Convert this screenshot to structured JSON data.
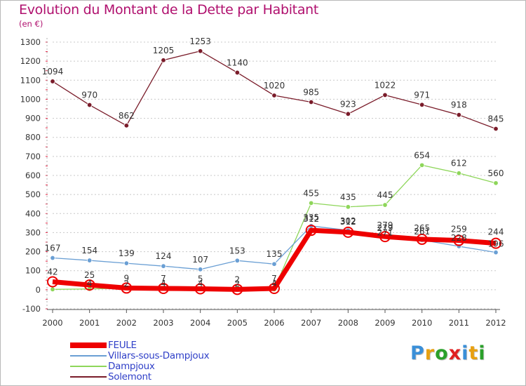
{
  "chart_data": {
    "type": "line",
    "title": "Evolution du Montant de la Dette par Habitant",
    "subtitle": "(en €)",
    "x": [
      "2000",
      "2001",
      "2002",
      "2003",
      "2004",
      "2005",
      "2006",
      "2007",
      "2008",
      "2009",
      "2010",
      "2011",
      "2012"
    ],
    "yticks": [
      -100,
      0,
      100,
      200,
      300,
      400,
      500,
      600,
      700,
      800,
      900,
      1000,
      1100,
      1200,
      1300
    ],
    "ylim": [
      -100,
      1300
    ],
    "grid": "horizontal dashed",
    "legend_position": "bottom-left",
    "series": [
      {
        "name": "Solemont",
        "color": "#7a1c2a",
        "values": [
          1094,
          970,
          862,
          1205,
          1253,
          1140,
          1020,
          985,
          923,
          1022,
          971,
          918,
          845
        ],
        "labels": [
          "1094",
          "970",
          "862",
          "1205",
          "1253",
          "1140",
          "1020",
          "985",
          "923",
          "1022",
          "971",
          "918",
          "845"
        ]
      },
      {
        "name": "Dampjoux",
        "color": "#8ed65a",
        "values": [
          2,
          4,
          9,
          7,
          7,
          7,
          2,
          455,
          435,
          445,
          654,
          612,
          560
        ],
        "labels": [
          "",
          "",
          "",
          "",
          "",
          "",
          "",
          "455",
          "435",
          "445",
          "654",
          "612",
          "560"
        ]
      },
      {
        "name": "Villars-sous-Dampjoux",
        "color": "#6a9fd4",
        "values": [
          167,
          154,
          139,
          124,
          107,
          153,
          135,
          335,
          312,
          279,
          261,
          228,
          196
        ],
        "labels": [
          "167",
          "154",
          "139",
          "124",
          "107",
          "153",
          "135",
          "335",
          "312",
          "279",
          "261",
          "228",
          "196"
        ]
      },
      {
        "name": "FEULE",
        "color": "#ee0000",
        "values": [
          42,
          25,
          9,
          7,
          5,
          2,
          7,
          312,
          302,
          279,
          265,
          259,
          244
        ],
        "labels": [
          "42",
          "25",
          "9",
          "7",
          "5",
          "2",
          "7",
          "312",
          "302",
          "279",
          "265",
          "259",
          "244"
        ]
      }
    ],
    "extra_point_labels": [
      {
        "x": "2001",
        "value": 4,
        "text": "4"
      },
      {
        "x": "2002",
        "value": 2,
        "text": "2"
      },
      {
        "x": "2003",
        "value": 4,
        "text": "4"
      },
      {
        "x": "2004",
        "value": 4,
        "text": "4"
      },
      {
        "x": "2005",
        "value": 2,
        "text": "2"
      },
      {
        "x": "2006",
        "value": 4,
        "text": "4"
      },
      {
        "x": "2009",
        "value": 271,
        "text": "271"
      }
    ]
  },
  "legend": [
    {
      "label": "FEULE",
      "color": "#ee0000",
      "thick": true
    },
    {
      "label": "Villars-sous-Dampjoux",
      "color": "#6a9fd4",
      "thick": false
    },
    {
      "label": "Dampjoux",
      "color": "#8ed65a",
      "thick": false
    },
    {
      "label": "Solemont",
      "color": "#7a1c2a",
      "thick": false
    }
  ],
  "logo": {
    "text": "Proxiti",
    "colors": [
      "#3a8fd8",
      "#e8a010",
      "#2aa02a",
      "#e02020",
      "#3a8fd8",
      "#e8a010",
      "#2aa02a"
    ]
  }
}
